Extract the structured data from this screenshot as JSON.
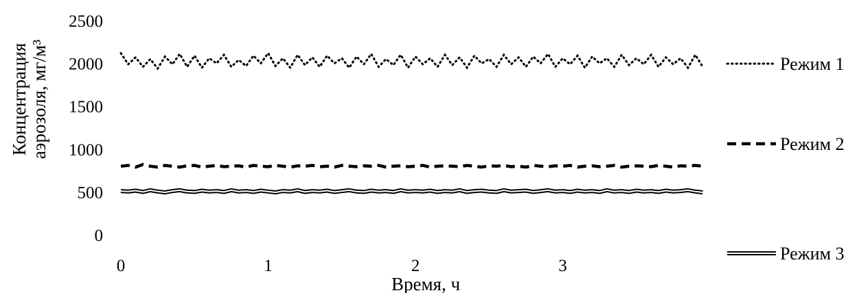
{
  "chart_data": {
    "type": "line",
    "xlabel": "Время, ч",
    "ylabel_lines": [
      "Концентрация",
      "аэрозоля, мг/м³"
    ],
    "xlim": [
      0,
      4
    ],
    "ylim": [
      0,
      2500
    ],
    "x_ticks": [
      0,
      1,
      2,
      3
    ],
    "y_ticks": [
      0,
      500,
      1000,
      1500,
      2000,
      2500
    ],
    "grid": false,
    "legend_position": "right",
    "series": [
      {
        "name": "Режим 1",
        "style": "dotted",
        "color": "#000000",
        "x": [
          0,
          0.05,
          0.1,
          0.15,
          0.2,
          0.25,
          0.3,
          0.35,
          0.4,
          0.45,
          0.5,
          0.55,
          0.6,
          0.65,
          0.7,
          0.75,
          0.8,
          0.85,
          0.9,
          0.95,
          1,
          1.05,
          1.1,
          1.15,
          1.2,
          1.25,
          1.3,
          1.35,
          1.4,
          1.45,
          1.5,
          1.55,
          1.6,
          1.65,
          1.7,
          1.75,
          1.8,
          1.85,
          1.9,
          1.95,
          2,
          2.05,
          2.1,
          2.15,
          2.2,
          2.25,
          2.3,
          2.35,
          2.4,
          2.45,
          2.5,
          2.55,
          2.6,
          2.65,
          2.7,
          2.75,
          2.8,
          2.85,
          2.9,
          2.95,
          3,
          3.05,
          3.1,
          3.15,
          3.2,
          3.25,
          3.3,
          3.35,
          3.4,
          3.45,
          3.5,
          3.55,
          3.6,
          3.65,
          3.7,
          3.75,
          3.8,
          3.85,
          3.9,
          3.95
        ],
        "values": [
          2120,
          1990,
          2070,
          1960,
          2050,
          1940,
          2080,
          1990,
          2110,
          1960,
          2090,
          1950,
          2060,
          2000,
          2100,
          1960,
          2040,
          1970,
          2090,
          2000,
          2120,
          1970,
          2060,
          1950,
          2100,
          1980,
          2070,
          1960,
          2090,
          2000,
          2060,
          1950,
          2080,
          1990,
          2110,
          1960,
          2050,
          1980,
          2100,
          1950,
          2080,
          1990,
          2060,
          1960,
          2100,
          1980,
          2070,
          1950,
          2090,
          2000,
          2050,
          1960,
          2100,
          1990,
          2070,
          1960,
          2080,
          2000,
          2110,
          1960,
          2060,
          1990,
          2090,
          1950,
          2080,
          2000,
          2060,
          1960,
          2100,
          1980,
          2060,
          1990,
          2100,
          1960,
          2070,
          1990,
          2060,
          1950,
          2100,
          1960
        ]
      },
      {
        "name": "Режим 2",
        "style": "dashed",
        "color": "#000000",
        "x": [
          0,
          0.05,
          0.1,
          0.15,
          0.2,
          0.25,
          0.3,
          0.35,
          0.4,
          0.45,
          0.5,
          0.55,
          0.6,
          0.65,
          0.7,
          0.75,
          0.8,
          0.85,
          0.9,
          0.95,
          1,
          1.05,
          1.1,
          1.15,
          1.2,
          1.25,
          1.3,
          1.35,
          1.4,
          1.45,
          1.5,
          1.55,
          1.6,
          1.65,
          1.7,
          1.75,
          1.8,
          1.85,
          1.9,
          1.95,
          2,
          2.05,
          2.1,
          2.15,
          2.2,
          2.25,
          2.3,
          2.35,
          2.4,
          2.45,
          2.5,
          2.55,
          2.6,
          2.65,
          2.7,
          2.75,
          2.8,
          2.85,
          2.9,
          2.95,
          3,
          3.05,
          3.1,
          3.15,
          3.2,
          3.25,
          3.3,
          3.35,
          3.4,
          3.45,
          3.5,
          3.55,
          3.6,
          3.65,
          3.7,
          3.75,
          3.8,
          3.85,
          3.9,
          3.95
        ],
        "values": [
          800,
          810,
          790,
          820,
          800,
          790,
          810,
          800,
          790,
          805,
          810,
          790,
          800,
          810,
          795,
          800,
          805,
          790,
          810,
          800,
          795,
          810,
          800,
          790,
          805,
          800,
          810,
          795,
          800,
          790,
          810,
          800,
          795,
          805,
          800,
          810,
          790,
          800,
          805,
          795,
          800,
          810,
          790,
          800,
          805,
          800,
          795,
          810,
          800,
          790,
          805,
          800,
          810,
          795,
          800,
          790,
          810,
          800,
          795,
          805,
          800,
          810,
          790,
          800,
          805,
          795,
          800,
          810,
          790,
          800,
          805,
          800,
          795,
          810,
          800,
          790,
          805,
          800,
          810,
          800
        ]
      },
      {
        "name": "Режим 3",
        "style": "double",
        "color": "#000000",
        "x": [
          0,
          0.05,
          0.1,
          0.15,
          0.2,
          0.25,
          0.3,
          0.35,
          0.4,
          0.45,
          0.5,
          0.55,
          0.6,
          0.65,
          0.7,
          0.75,
          0.8,
          0.85,
          0.9,
          0.95,
          1,
          1.05,
          1.1,
          1.15,
          1.2,
          1.25,
          1.3,
          1.35,
          1.4,
          1.45,
          1.5,
          1.55,
          1.6,
          1.65,
          1.7,
          1.75,
          1.8,
          1.85,
          1.9,
          1.95,
          2,
          2.05,
          2.1,
          2.15,
          2.2,
          2.25,
          2.3,
          2.35,
          2.4,
          2.45,
          2.5,
          2.55,
          2.6,
          2.65,
          2.7,
          2.75,
          2.8,
          2.85,
          2.9,
          2.95,
          3,
          3.05,
          3.1,
          3.15,
          3.2,
          3.25,
          3.3,
          3.35,
          3.4,
          3.45,
          3.5,
          3.55,
          3.6,
          3.65,
          3.7,
          3.75,
          3.8,
          3.85,
          3.9,
          3.95
        ],
        "values": [
          510,
          505,
          515,
          500,
          520,
          505,
          495,
          510,
          520,
          505,
          500,
          515,
          505,
          510,
          500,
          520,
          505,
          510,
          500,
          515,
          505,
          495,
          510,
          505,
          520,
          500,
          510,
          505,
          515,
          500,
          510,
          520,
          505,
          500,
          515,
          505,
          510,
          500,
          520,
          505,
          510,
          505,
          515,
          500,
          510,
          505,
          520,
          500,
          510,
          515,
          505,
          500,
          520,
          505,
          510,
          515,
          500,
          510,
          520,
          505,
          510,
          500,
          515,
          505,
          510,
          500,
          520,
          505,
          510,
          500,
          515,
          505,
          510,
          500,
          515,
          505,
          510,
          520,
          505,
          495
        ]
      }
    ]
  }
}
